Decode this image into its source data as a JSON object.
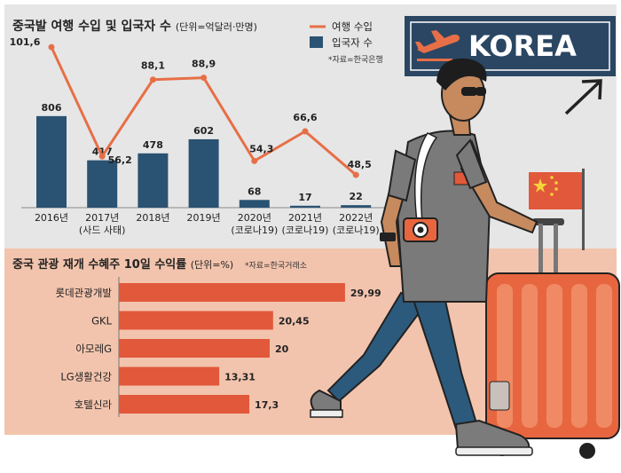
{
  "sign": {
    "text": "KOREA"
  },
  "chart_data": [
    {
      "type": "bar+line",
      "title": "중국발 여행 수입 및 입국자 수",
      "unit": "(단위=억달러·만명)",
      "source": "*자료=한국은행",
      "legend": [
        {
          "name": "여행 수입",
          "kind": "line"
        },
        {
          "name": "입국자 수",
          "kind": "bar"
        }
      ],
      "categories": [
        "2016년",
        "2017년",
        "2018년",
        "2019년",
        "2020년",
        "2021년",
        "2022년"
      ],
      "category_notes": [
        "",
        "(사드 사태)",
        "",
        "",
        "(코로나19)",
        "(코로나19)",
        "(코로나19)"
      ],
      "series": [
        {
          "name": "입국자 수",
          "type": "bar",
          "values": [
            806,
            417,
            478,
            602,
            68,
            17,
            22
          ],
          "labels": [
            "806",
            "417",
            "478",
            "602",
            "68",
            "17",
            "22"
          ]
        },
        {
          "name": "여행 수입",
          "type": "line",
          "values": [
            101.6,
            56.2,
            88.1,
            88.9,
            54.3,
            66.6,
            48.5
          ],
          "labels": [
            "101,6",
            "56,2",
            "88,1",
            "88,9",
            "54,3",
            "66,6",
            "48,5"
          ]
        }
      ],
      "colors": {
        "bar": "#2a5272",
        "line": "#e76f47",
        "background": "#e6e6e6"
      }
    },
    {
      "type": "bar",
      "orientation": "horizontal",
      "title": "중국 관광 재개 수혜주 10일 수익률",
      "unit": "(단위=%)",
      "source": "*자료=한국거래소",
      "categories": [
        "롯데관광개발",
        "GKL",
        "아모레G",
        "LG생활건강",
        "호텔신라"
      ],
      "values": [
        29.99,
        20.45,
        20,
        13.31,
        17.3
      ],
      "labels": [
        "29,99",
        "20,45",
        "20",
        "13,31",
        "17,3"
      ],
      "colors": {
        "bar": "#e2583a",
        "background": "#f3c4ad"
      }
    }
  ]
}
